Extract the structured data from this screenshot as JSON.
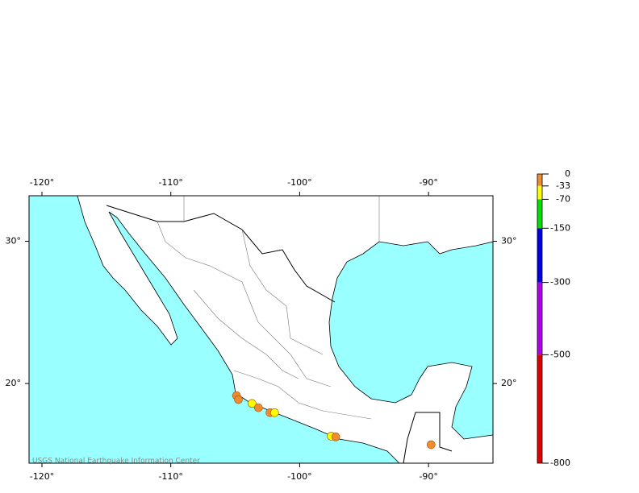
{
  "chart_data": {
    "type": "map",
    "credit": "USGS National Earthquake Information Center",
    "xlim": [
      -121,
      -85
    ],
    "ylim": [
      14.4,
      33.2
    ],
    "xticks": [
      {
        "value": -120,
        "label": "-120°"
      },
      {
        "value": -110,
        "label": "-110°"
      },
      {
        "value": -100,
        "label": "-100°"
      },
      {
        "value": -90,
        "label": "-90°"
      }
    ],
    "yticks": [
      {
        "value": 30,
        "label": "30°"
      },
      {
        "value": 20,
        "label": "20°"
      }
    ],
    "ocean_color": "#99ffff",
    "points": {
      "lon": [
        -104.9,
        -104.75,
        -103.7,
        -103.2,
        -102.3,
        -101.95,
        -97.55,
        -97.2,
        -89.8
      ],
      "lat": [
        19.15,
        18.87,
        18.6,
        18.3,
        17.95,
        17.95,
        16.3,
        16.25,
        15.7
      ],
      "colors": [
        "#f08c30",
        "#f08c30",
        "#ffff00",
        "#f08c30",
        "#f08c30",
        "#ffff00",
        "#ffff00",
        "#f08c30",
        "#f08c30"
      ]
    },
    "colorbar": {
      "lim": [
        0,
        -800
      ],
      "ticks": [
        0,
        -33,
        -70,
        -150,
        -300,
        -500,
        -800
      ],
      "colors": [
        "#f08c30",
        "#ffff00",
        "#00e000",
        "#0000e0",
        "#b000f0",
        "#e00000"
      ]
    }
  }
}
